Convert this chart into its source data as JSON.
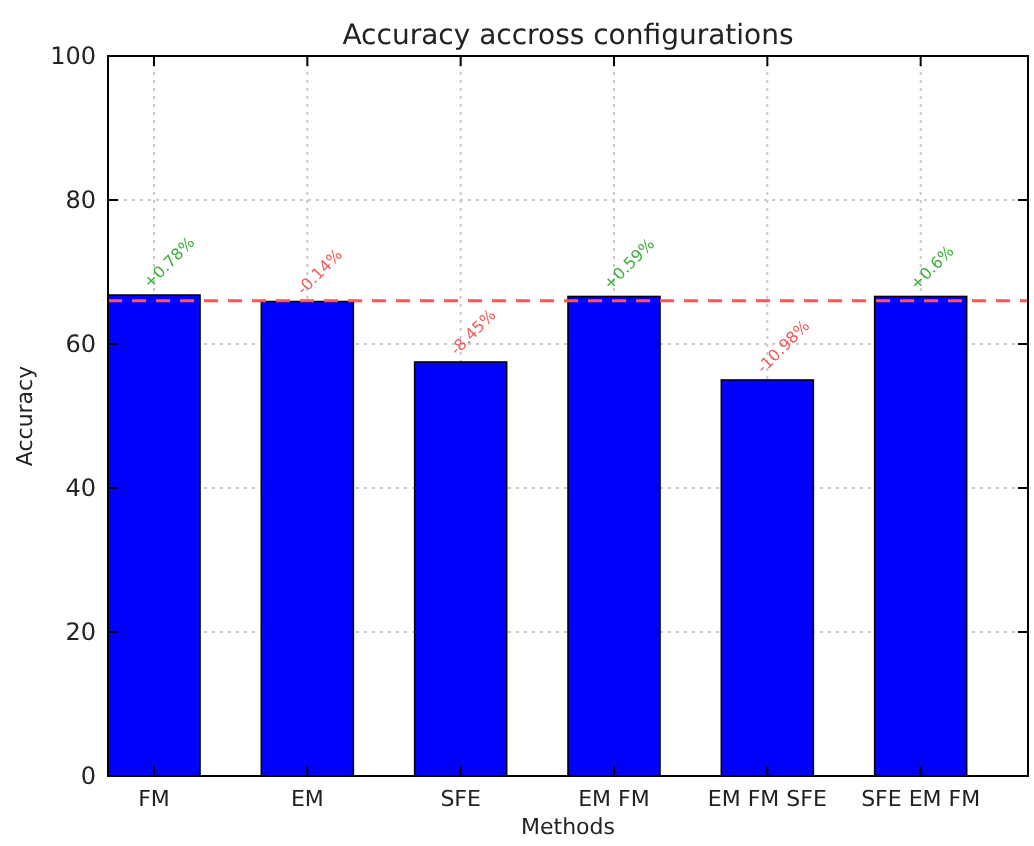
{
  "chart_data": {
    "type": "bar",
    "title": "Accuracy accross configurations",
    "xlabel": "Methods",
    "ylabel": "Accuracy",
    "categories": [
      "FM",
      "EM",
      "SFE",
      "EM FM",
      "EM FM SFE",
      "SFE EM FM"
    ],
    "values": [
      66.8,
      65.9,
      57.5,
      66.6,
      55.0,
      66.6
    ],
    "color": "#0000ff",
    "annotations": [
      {
        "text": "+0.78%",
        "x": "FM",
        "y": 66.8
      },
      {
        "text": "-0.14%",
        "x": "EM",
        "y": 65.9
      },
      {
        "text": "-8.45%",
        "x": "SFE",
        "y": 57.5
      },
      {
        "text": "+0.59%",
        "x": "EM FM",
        "y": 66.6
      },
      {
        "text": "-10.98%",
        "x": "EM FM SFE",
        "y": 55.0
      },
      {
        "text": "+0.6%",
        "x": "SFE EM FM",
        "y": 66.6
      }
    ],
    "ylim": [
      0,
      100
    ],
    "yticks": [
      0,
      20,
      40,
      60,
      80,
      100
    ],
    "grid": true,
    "ref_lines": [
      {
        "axis": "y",
        "value": 66.0,
        "color": "#f05a5a",
        "line_style": "dashed"
      }
    ]
  }
}
